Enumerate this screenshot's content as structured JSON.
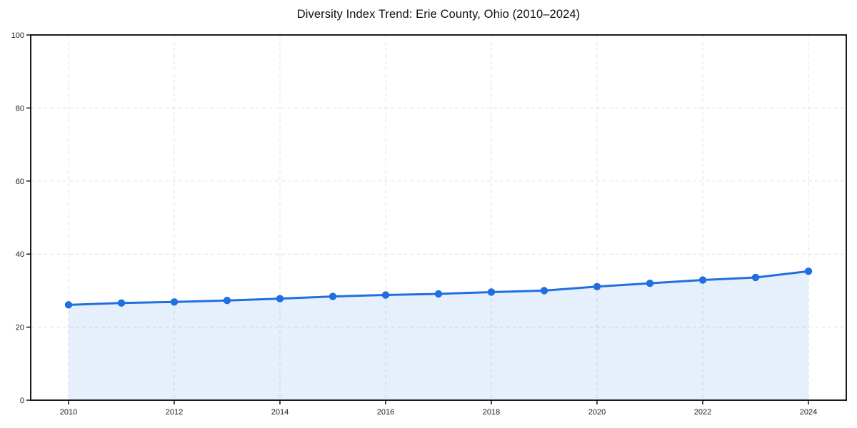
{
  "page": {
    "background_color": "#ffffff"
  },
  "chart_data": {
    "type": "line",
    "title": "Diversity Index Trend: Erie County, Ohio (2010–2024)",
    "xlabel": "",
    "ylabel": "",
    "x": [
      2010,
      2011,
      2012,
      2013,
      2014,
      2015,
      2016,
      2017,
      2018,
      2019,
      2020,
      2021,
      2022,
      2023,
      2024
    ],
    "series": [
      {
        "name": "Diversity Index",
        "values": [
          26.1,
          26.6,
          26.9,
          27.3,
          27.8,
          28.4,
          28.8,
          29.1,
          29.6,
          30.0,
          31.1,
          32.0,
          32.9,
          33.6,
          35.3
        ]
      }
    ],
    "xticks": [
      2010,
      2012,
      2014,
      2016,
      2018,
      2020,
      2022,
      2024
    ],
    "yticks": [
      0,
      20,
      40,
      60,
      80,
      100
    ],
    "ylim": [
      0,
      100
    ],
    "grid": "dashed-both-axes",
    "legend": "none",
    "area_fill_under_line": true,
    "marker": "circle",
    "colors": {
      "line": "#1f6fe0",
      "marker": "#1f6fe0",
      "area": "rgba(31,111,224,0.11)",
      "grid": "#e0e0e0",
      "spine": "#000000",
      "tick_text": "#1a1a1a",
      "title_text": "#111111"
    }
  }
}
